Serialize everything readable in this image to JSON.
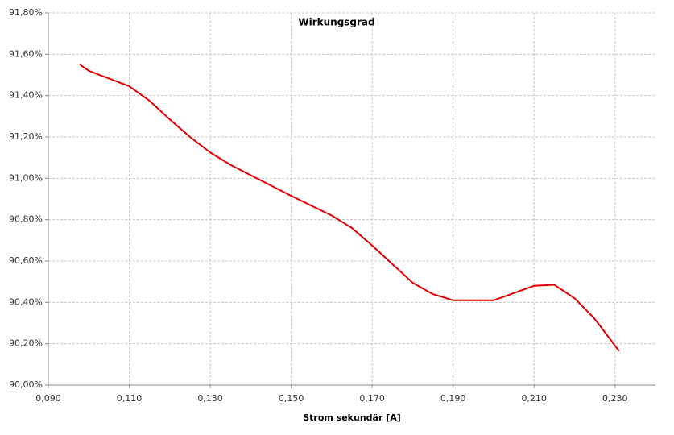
{
  "chart_data": {
    "type": "line",
    "title": "Wirkungsgrad",
    "x_label": "Strom sekundär [A]",
    "x": [
      0.0978,
      0.1,
      0.11,
      0.115,
      0.12,
      0.125,
      0.13,
      0.135,
      0.14,
      0.15,
      0.16,
      0.165,
      0.17,
      0.175,
      0.18,
      0.185,
      0.19,
      0.2,
      0.205,
      0.21,
      0.215,
      0.22,
      0.225,
      0.231
    ],
    "series": [
      {
        "color": "#e00000",
        "values": [
          91.55,
          91.52,
          91.445,
          91.375,
          91.285,
          91.2,
          91.125,
          91.065,
          91.015,
          90.915,
          90.82,
          90.76,
          90.675,
          90.585,
          90.495,
          90.44,
          90.41,
          90.41,
          90.445,
          90.48,
          90.485,
          90.42,
          90.32,
          90.165
        ]
      }
    ],
    "xlim": [
      0.09,
      0.24
    ],
    "xticks": [
      {
        "value": 0.09,
        "label": "0,090"
      },
      {
        "value": 0.11,
        "label": "0,110"
      },
      {
        "value": 0.13,
        "label": "0,130"
      },
      {
        "value": 0.15,
        "label": "0,150"
      },
      {
        "value": 0.17,
        "label": "0,170"
      },
      {
        "value": 0.19,
        "label": "0,190"
      },
      {
        "value": 0.21,
        "label": "0,210"
      },
      {
        "value": 0.23,
        "label": "0,230"
      }
    ],
    "ylim": [
      90,
      91.8
    ],
    "yticks": [
      {
        "value": 90,
        "label": "90,00%"
      },
      {
        "value": 90.2,
        "label": "90,20%"
      },
      {
        "value": 90.4,
        "label": "90,40%"
      },
      {
        "value": 90.6,
        "label": "90,60%"
      },
      {
        "value": 90.8,
        "label": "90,80%"
      },
      {
        "value": 91,
        "label": "91,00%"
      },
      {
        "value": 91.2,
        "label": "91,20%"
      },
      {
        "value": 91.4,
        "label": "91,40%"
      },
      {
        "value": 91.6,
        "label": "91,60%"
      },
      {
        "value": 91.8,
        "label": "91,80%"
      }
    ],
    "grid": true
  }
}
